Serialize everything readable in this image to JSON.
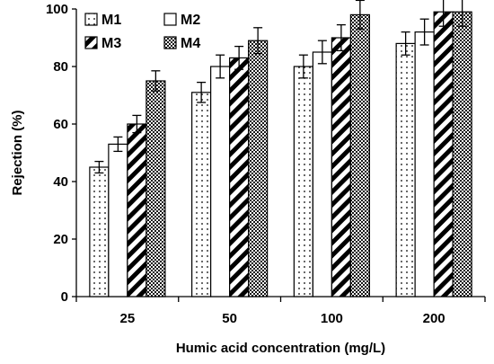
{
  "chart_data": {
    "type": "bar",
    "title": "",
    "xlabel": "Humic acid concentration (mg/L)",
    "ylabel": "Rejection (%)",
    "categories": [
      "25",
      "50",
      "100",
      "200"
    ],
    "ylim": [
      0,
      100
    ],
    "yticks": [
      "0",
      "20",
      "40",
      "60",
      "80",
      "100"
    ],
    "legend_position": "top-left",
    "series": [
      {
        "name": "M1",
        "pattern": "dots-sparse",
        "values": [
          45,
          71,
          80,
          88
        ],
        "errors": [
          2,
          3.5,
          4,
          4
        ]
      },
      {
        "name": "M2",
        "pattern": "solid-white",
        "values": [
          53,
          80,
          85,
          92
        ],
        "errors": [
          2.5,
          4,
          4,
          4.5
        ]
      },
      {
        "name": "M3",
        "pattern": "diagonal-hatch",
        "values": [
          60,
          83,
          90,
          99
        ],
        "errors": [
          3,
          4,
          4.5,
          5
        ]
      },
      {
        "name": "M4",
        "pattern": "dots-dense",
        "values": [
          75,
          89,
          98,
          99
        ],
        "errors": [
          3.5,
          4.5,
          5,
          5
        ]
      }
    ]
  }
}
